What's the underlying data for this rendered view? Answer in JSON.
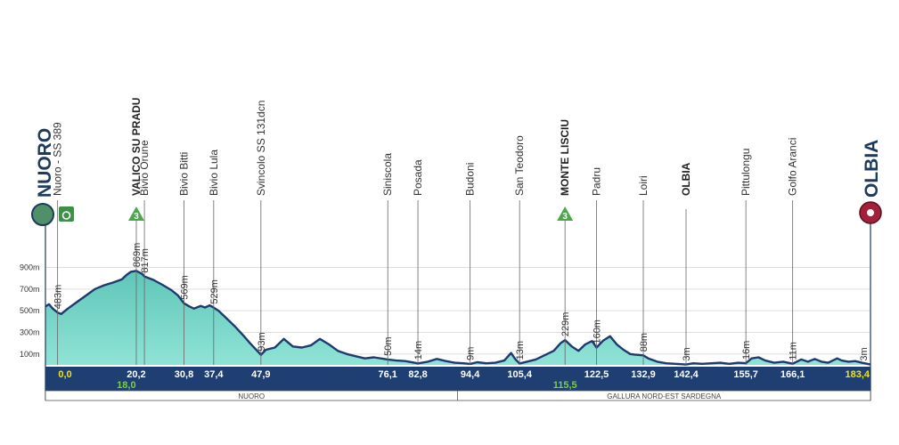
{
  "chart_data": {
    "type": "area",
    "title": "",
    "xlabel": "",
    "ylabel": "",
    "y_unit": "m",
    "ylim": [
      0,
      950
    ],
    "xlim": [
      0,
      183.4
    ],
    "yticks": [
      "100m",
      "300m",
      "500m",
      "700m",
      "900m"
    ],
    "start_name": "NUORO",
    "finish_name": "OLBIA",
    "profile": [
      [
        0,
        540
      ],
      [
        0.8,
        560
      ],
      [
        1.6,
        520
      ],
      [
        2.7,
        483
      ],
      [
        3.5,
        470
      ],
      [
        5,
        520
      ],
      [
        7,
        580
      ],
      [
        9,
        640
      ],
      [
        11,
        700
      ],
      [
        13,
        735
      ],
      [
        15,
        760
      ],
      [
        17,
        790
      ],
      [
        18,
        830
      ],
      [
        19,
        860
      ],
      [
        20.2,
        869
      ],
      [
        21.5,
        840
      ],
      [
        22,
        817
      ],
      [
        24,
        785
      ],
      [
        26,
        740
      ],
      [
        28,
        690
      ],
      [
        29.5,
        640
      ],
      [
        30.8,
        569
      ],
      [
        32,
        540
      ],
      [
        33,
        520
      ],
      [
        34.5,
        545
      ],
      [
        35.5,
        530
      ],
      [
        36.5,
        550
      ],
      [
        37.4,
        529
      ],
      [
        38.5,
        500
      ],
      [
        40,
        440
      ],
      [
        42,
        360
      ],
      [
        44,
        270
      ],
      [
        45.5,
        200
      ],
      [
        47.9,
        93
      ],
      [
        49,
        140
      ],
      [
        51,
        160
      ],
      [
        53,
        240
      ],
      [
        55,
        170
      ],
      [
        57,
        160
      ],
      [
        59,
        180
      ],
      [
        61,
        240
      ],
      [
        63,
        190
      ],
      [
        65,
        130
      ],
      [
        67,
        100
      ],
      [
        69,
        80
      ],
      [
        71,
        60
      ],
      [
        73,
        70
      ],
      [
        76.1,
        50
      ],
      [
        78,
        40
      ],
      [
        80,
        35
      ],
      [
        82.8,
        14
      ],
      [
        85,
        30
      ],
      [
        87,
        55
      ],
      [
        89,
        35
      ],
      [
        91,
        20
      ],
      [
        93,
        15
      ],
      [
        94.4,
        9
      ],
      [
        96,
        25
      ],
      [
        98,
        15
      ],
      [
        100,
        20
      ],
      [
        102,
        40
      ],
      [
        103.5,
        110
      ],
      [
        104.5,
        50
      ],
      [
        105.4,
        13
      ],
      [
        107,
        30
      ],
      [
        109,
        50
      ],
      [
        111,
        90
      ],
      [
        113,
        130
      ],
      [
        114.5,
        200
      ],
      [
        115.5,
        229
      ],
      [
        117,
        170
      ],
      [
        118.5,
        130
      ],
      [
        120,
        190
      ],
      [
        121.5,
        220
      ],
      [
        122.5,
        160
      ],
      [
        124,
        225
      ],
      [
        125.5,
        265
      ],
      [
        127,
        190
      ],
      [
        128.5,
        140
      ],
      [
        130,
        100
      ],
      [
        131,
        95
      ],
      [
        132.9,
        88
      ],
      [
        134,
        60
      ],
      [
        136,
        30
      ],
      [
        138,
        15
      ],
      [
        140,
        10
      ],
      [
        142.4,
        3
      ],
      [
        144,
        15
      ],
      [
        146,
        10
      ],
      [
        148,
        15
      ],
      [
        150,
        20
      ],
      [
        152,
        10
      ],
      [
        154,
        20
      ],
      [
        155.7,
        16
      ],
      [
        157,
        60
      ],
      [
        158.5,
        70
      ],
      [
        160,
        40
      ],
      [
        162,
        20
      ],
      [
        164,
        30
      ],
      [
        166.1,
        11
      ],
      [
        168,
        50
      ],
      [
        169.5,
        30
      ],
      [
        171,
        55
      ],
      [
        172.5,
        30
      ],
      [
        174,
        20
      ],
      [
        176,
        60
      ],
      [
        177,
        40
      ],
      [
        178.5,
        30
      ],
      [
        180,
        35
      ],
      [
        181.5,
        20
      ],
      [
        183.4,
        3
      ]
    ],
    "waypoints": [
      {
        "name": "Nuoro - SS 389",
        "km": "",
        "alt": "483m",
        "x": 2.7,
        "y": 483,
        "bold": false
      },
      {
        "name": "VALICO SU PRADU",
        "km": "20,2",
        "alt": "869m",
        "x": 20.2,
        "y": 869,
        "bold": true
      },
      {
        "name": "Bivio Orune",
        "km": "",
        "alt": "817m",
        "x": 22,
        "y": 817,
        "bold": false
      },
      {
        "name": "Bivio Bitti",
        "km": "30,8",
        "alt": "569m",
        "x": 30.8,
        "y": 569,
        "bold": false
      },
      {
        "name": "Bivio Lula",
        "km": "37,4",
        "alt": "529m",
        "x": 37.4,
        "y": 529,
        "bold": false
      },
      {
        "name": "Svincolo SS 131dcn",
        "km": "47,9",
        "alt": "93m",
        "x": 47.9,
        "y": 93,
        "bold": false
      },
      {
        "name": "Siniscola",
        "km": "76,1",
        "alt": "50m",
        "x": 76.1,
        "y": 50,
        "bold": false
      },
      {
        "name": "Posada",
        "km": "82,8",
        "alt": "14m",
        "x": 82.8,
        "y": 14,
        "bold": false
      },
      {
        "name": "Budoni",
        "km": "94,4",
        "alt": "9m",
        "x": 94.4,
        "y": 9,
        "bold": false
      },
      {
        "name": "San Teodoro",
        "km": "105,4",
        "alt": "13m",
        "x": 105.4,
        "y": 13,
        "bold": false
      },
      {
        "name": "MONTE LISCIU",
        "km": "",
        "alt": "229m",
        "x": 115.5,
        "y": 229,
        "bold": true
      },
      {
        "name": "Padru",
        "km": "122,5",
        "alt": "160m",
        "x": 122.5,
        "y": 160,
        "bold": false
      },
      {
        "name": "Loiri",
        "km": "132,9",
        "alt": "88m",
        "x": 132.9,
        "y": 88,
        "bold": false
      },
      {
        "name": "OLBIA",
        "km": "142,4",
        "alt": "3m",
        "x": 142.4,
        "y": 3,
        "bold": true
      },
      {
        "name": "Pittulongu",
        "km": "155,7",
        "alt": "16m",
        "x": 155.7,
        "y": 16,
        "bold": false
      },
      {
        "name": "Golfo Aranci",
        "km": "166,1",
        "alt": "11m",
        "x": 166.1,
        "y": 11,
        "bold": false
      }
    ],
    "extra_km_labels": [
      {
        "km": "0,0",
        "x": 0,
        "style": "start"
      },
      {
        "km": "18,0",
        "x": 18.0,
        "style": "sprint"
      },
      {
        "km": "115,5",
        "x": 115.5,
        "style": "sprint"
      },
      {
        "km": "183,4",
        "x": 183.4,
        "style": "end"
      }
    ],
    "finish_alt": {
      "alt": "3m",
      "x": 183.4,
      "y": 3
    },
    "kom": [
      {
        "category": "3",
        "x": 20.2
      },
      {
        "category": "3",
        "x": 115.5
      }
    ],
    "regions": [
      "NUORO",
      "GALLURA NORD-EST SARDEGNA"
    ],
    "region_split_km": 91.6,
    "colors": {
      "fill": "#7dd6c8",
      "fill_dark": "#4fb7aa",
      "line": "#1e3a6e",
      "km_bar": "#1f3f73",
      "kom": "#4aa84a",
      "start": "#4f8f6a",
      "finish": "#a3203a",
      "grid": "#dddddd"
    },
    "grid": true,
    "legend": "none"
  }
}
